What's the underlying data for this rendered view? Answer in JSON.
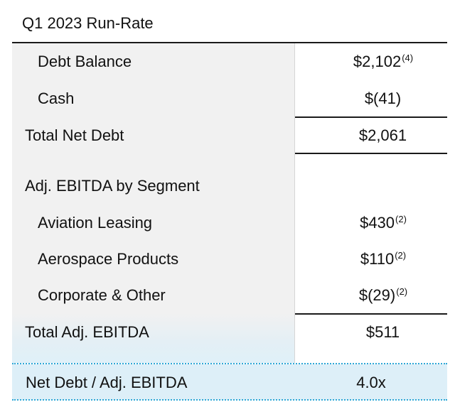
{
  "title": "Q1 2023 Run-Rate",
  "rows": [
    {
      "label": "Debt Balance",
      "value": "$2,102",
      "footnote": "(4)"
    },
    {
      "label": "Cash",
      "value": "$(41)",
      "footnote": ""
    },
    {
      "label": "Total Net Debt",
      "value": "$2,061",
      "footnote": ""
    },
    {
      "label": "Adj. EBITDA by Segment",
      "value": "",
      "footnote": ""
    },
    {
      "label": "Aviation Leasing",
      "value": "$430",
      "footnote": "(2)"
    },
    {
      "label": "Aerospace Products",
      "value": "$110",
      "footnote": "(2)"
    },
    {
      "label": "Corporate & Other",
      "value": "$(29)",
      "footnote": "(2)"
    },
    {
      "label": "Total Adj. EBITDA",
      "value": "$511",
      "footnote": ""
    }
  ],
  "summary": {
    "label": "Net Debt / Adj. EBITDA",
    "value": "4.0x"
  },
  "colors": {
    "panel": "#f1f1f1",
    "summary_band": "#ddeff8",
    "dotted_rule": "#2ea7d6",
    "rule": "#1a1a1a"
  }
}
